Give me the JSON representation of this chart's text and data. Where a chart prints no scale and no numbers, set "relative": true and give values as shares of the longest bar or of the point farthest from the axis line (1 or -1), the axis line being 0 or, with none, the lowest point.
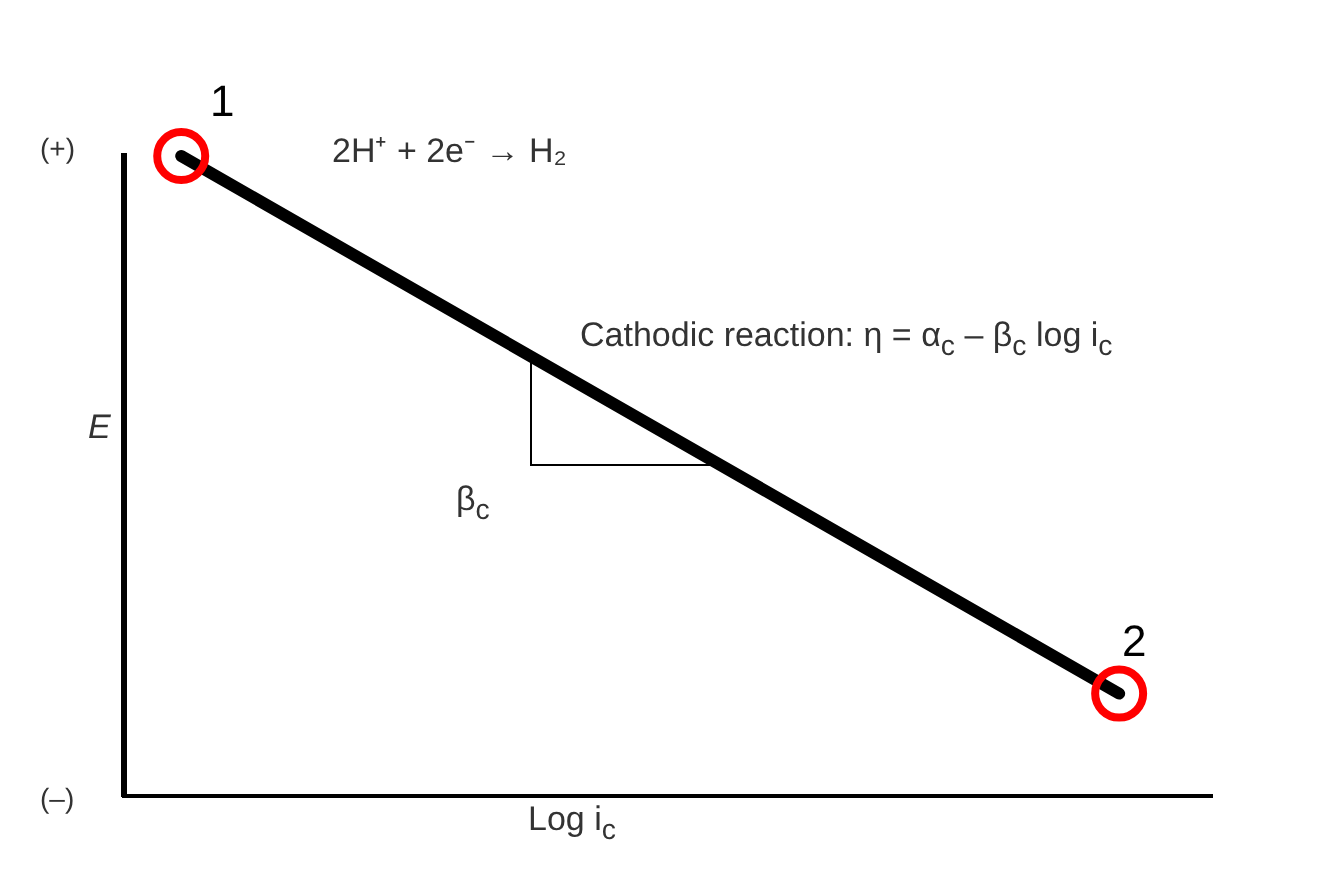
{
  "chart_data": {
    "type": "line",
    "relative": true,
    "categories": [
      null,
      null
    ],
    "series": [
      {
        "color": "#000000",
        "values": [
          1,
          0.16
        ]
      }
    ],
    "xlabel": "Log i$_{c}$",
    "ylabel": "E",
    "marker": "circle",
    "grid": false,
    "legend": false,
    "annotations": [
      "(+)",
      "(–)",
      "1",
      "2",
      "2H⁺ + 2e⁻ → H₂",
      "Cathodic reaction: η = α$_{c}$ – β$_{c}$ log i$_{c}$",
      "β$_{c}$"
    ]
  }
}
